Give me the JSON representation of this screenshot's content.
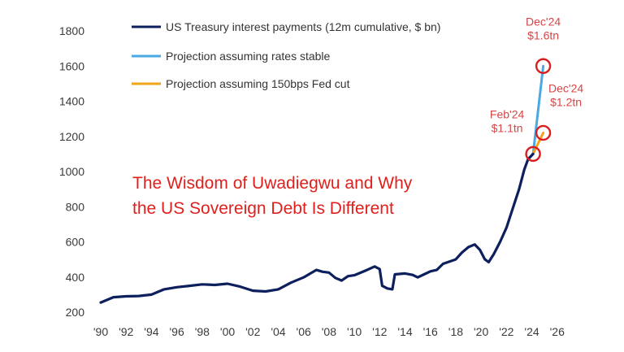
{
  "chart_data": {
    "type": "line",
    "title": "",
    "xlabel": "",
    "ylabel": "",
    "xlim": [
      1990,
      2026.4
    ],
    "ylim": [
      200,
      1800
    ],
    "grid": false,
    "legend_position": "top-left",
    "y_ticks": [
      200,
      400,
      600,
      800,
      1000,
      1200,
      1400,
      1600,
      1800
    ],
    "x_ticks": [
      {
        "value": 1990,
        "label": "'90"
      },
      {
        "value": 1992,
        "label": "'92"
      },
      {
        "value": 1994,
        "label": "'94"
      },
      {
        "value": 1996,
        "label": "'96"
      },
      {
        "value": 1998,
        "label": "'98"
      },
      {
        "value": 2000,
        "label": "'00"
      },
      {
        "value": 2002,
        "label": "'02"
      },
      {
        "value": 2004,
        "label": "'04"
      },
      {
        "value": 2006,
        "label": "'06"
      },
      {
        "value": 2008,
        "label": "'08"
      },
      {
        "value": 2010,
        "label": "'10"
      },
      {
        "value": 2012,
        "label": "'12"
      },
      {
        "value": 2014,
        "label": "'14"
      },
      {
        "value": 2016,
        "label": "'16"
      },
      {
        "value": 2018,
        "label": "'18"
      },
      {
        "value": 2020,
        "label": "'20"
      },
      {
        "value": 2022,
        "label": "'22"
      },
      {
        "value": 2024,
        "label": "'24"
      },
      {
        "value": 2026,
        "label": "'26"
      }
    ],
    "series": [
      {
        "name": "US Treasury interest payments (12m cumulative, $ bn)",
        "color": "#0d1f5c",
        "points": [
          [
            1990,
            255
          ],
          [
            1990.5,
            270
          ],
          [
            1991,
            285
          ],
          [
            1992,
            290
          ],
          [
            1993,
            292
          ],
          [
            1994,
            300
          ],
          [
            1995,
            330
          ],
          [
            1996,
            342
          ],
          [
            1997,
            350
          ],
          [
            1998,
            358
          ],
          [
            1999,
            355
          ],
          [
            2000,
            362
          ],
          [
            2001,
            345
          ],
          [
            2002,
            322
          ],
          [
            2003,
            318
          ],
          [
            2004,
            330
          ],
          [
            2005,
            368
          ],
          [
            2006,
            398
          ],
          [
            2007,
            440
          ],
          [
            2007.5,
            430
          ],
          [
            2008,
            425
          ],
          [
            2008.5,
            395
          ],
          [
            2009,
            380
          ],
          [
            2009.5,
            405
          ],
          [
            2010,
            410
          ],
          [
            2011,
            440
          ],
          [
            2011.6,
            460
          ],
          [
            2012,
            445
          ],
          [
            2012.2,
            350
          ],
          [
            2012.6,
            335
          ],
          [
            2013,
            330
          ],
          [
            2013.2,
            415
          ],
          [
            2014,
            420
          ],
          [
            2014.6,
            412
          ],
          [
            2015,
            398
          ],
          [
            2015.5,
            415
          ],
          [
            2016,
            432
          ],
          [
            2016.5,
            440
          ],
          [
            2017,
            475
          ],
          [
            2018,
            500
          ],
          [
            2018.5,
            540
          ],
          [
            2019,
            570
          ],
          [
            2019.5,
            585
          ],
          [
            2019.9,
            555
          ],
          [
            2020.3,
            500
          ],
          [
            2020.6,
            485
          ],
          [
            2021,
            530
          ],
          [
            2021.5,
            600
          ],
          [
            2022,
            680
          ],
          [
            2022.5,
            790
          ],
          [
            2023,
            900
          ],
          [
            2023.4,
            1010
          ],
          [
            2023.7,
            1070
          ],
          [
            2024.1,
            1100
          ]
        ]
      },
      {
        "name": "Projection assuming rates stable",
        "color": "#4aa9e0",
        "points": [
          [
            2024.1,
            1100
          ],
          [
            2024.9,
            1600
          ]
        ]
      },
      {
        "name": "Projection assuming 150bps Fed cut",
        "color": "#f2a31b",
        "points": [
          [
            2024.1,
            1100
          ],
          [
            2024.9,
            1220
          ]
        ]
      }
    ],
    "annotations": [
      {
        "x": 2024.1,
        "y": 1100,
        "lines": [
          "Feb'24",
          "$1.1tn"
        ]
      },
      {
        "x": 2024.9,
        "y": 1600,
        "lines": [
          "Dec'24",
          "$1.6tn"
        ]
      },
      {
        "x": 2024.9,
        "y": 1220,
        "lines": [
          "Dec'24",
          "$1.2tn"
        ]
      }
    ],
    "overlay_title_lines": [
      "The Wisdom of Uwadiegwu and Why",
      "the US Sovereign Debt Is Different"
    ]
  }
}
